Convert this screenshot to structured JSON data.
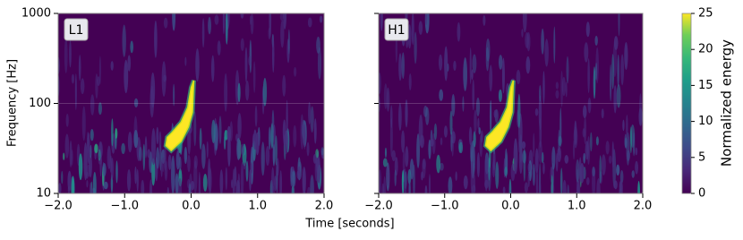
{
  "chart_data": {
    "type": "spectrogram",
    "xlabel": "Time [seconds]",
    "ylabel": "Frequency [Hz]",
    "xlim": [
      -2,
      2
    ],
    "xticks": [
      {
        "value": -2,
        "label": "−2.0"
      },
      {
        "value": -1,
        "label": "−1.0"
      },
      {
        "value": 0,
        "label": "0.0"
      },
      {
        "value": 1,
        "label": "1.0"
      },
      {
        "value": 2,
        "label": "2.0"
      }
    ],
    "ylim": [
      10,
      1000
    ],
    "yticks": [
      10,
      100,
      1000
    ],
    "log_y": true,
    "grid": true,
    "panels": [
      {
        "label": "L1"
      },
      {
        "label": "H1"
      }
    ],
    "colorbar": {
      "label": "Normalized energy",
      "lim": [
        0,
        25
      ],
      "ticks": [
        0,
        5,
        10,
        15,
        20,
        25
      ]
    }
  }
}
